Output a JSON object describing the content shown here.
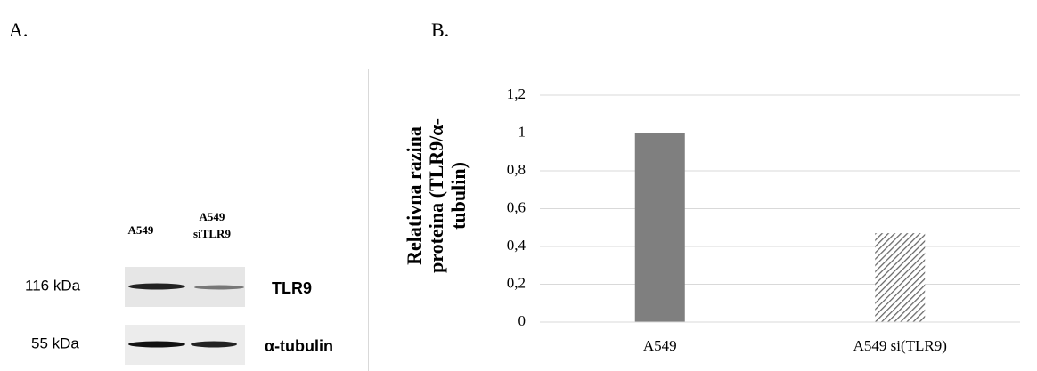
{
  "panel_labels": [
    "A.",
    "B."
  ],
  "blot": {
    "lanes": [
      "A549",
      "A549 siTLR9"
    ],
    "markers": [
      "116 kDa",
      "55 kDa"
    ],
    "proteins": [
      "TLR9",
      "α-tubulin"
    ]
  },
  "chart_data": {
    "type": "bar",
    "y_label": "Relativna razina proteina (TLR9/α-tubulin)",
    "categories": [
      "A549",
      "A549 si(TLR9)"
    ],
    "values": [
      1,
      0.47
    ],
    "colors": [
      "#7f7f7f",
      "#7f7f7f"
    ],
    "bar_styles": [
      "solid",
      "hatched"
    ],
    "ylim": [
      0,
      1.2
    ],
    "yticks": [
      0,
      {
        "value": 0.2,
        "label": "0,2"
      },
      {
        "value": 0.4,
        "label": "0,4"
      },
      {
        "value": 0.6,
        "label": "0,6"
      },
      {
        "value": 0.8,
        "label": "0,8"
      },
      1,
      {
        "value": 1.2,
        "label": "1,2"
      }
    ],
    "grid": true
  }
}
